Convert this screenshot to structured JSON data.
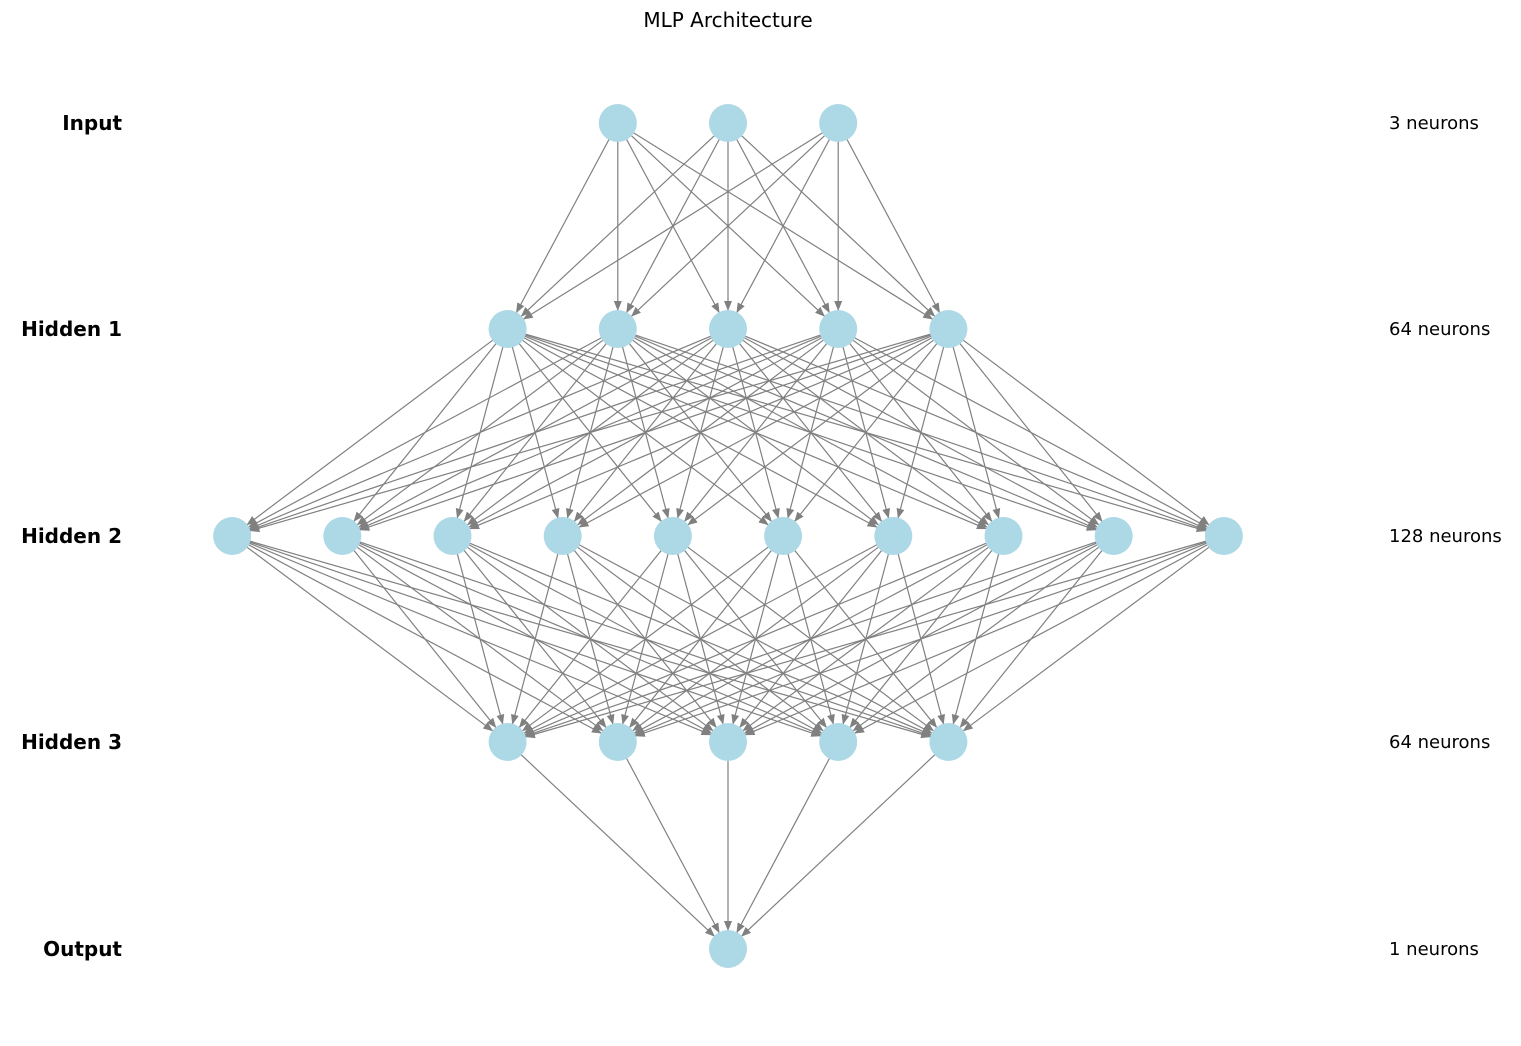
{
  "title": "MLP Architecture",
  "layers": [
    {
      "label": "Input",
      "count_label": "3 neurons",
      "nodes_drawn": 3
    },
    {
      "label": "Hidden 1",
      "count_label": "64 neurons",
      "nodes_drawn": 5
    },
    {
      "label": "Hidden 2",
      "count_label": "128 neurons",
      "nodes_drawn": 10
    },
    {
      "label": "Hidden 3",
      "count_label": "64 neurons",
      "nodes_drawn": 5
    },
    {
      "label": "Output",
      "count_label": "1 neurons",
      "nodes_drawn": 1
    }
  ],
  "colors": {
    "node_fill": "#add8e6",
    "edge": "#808080",
    "text": "#000000",
    "background": "#ffffff"
  }
}
